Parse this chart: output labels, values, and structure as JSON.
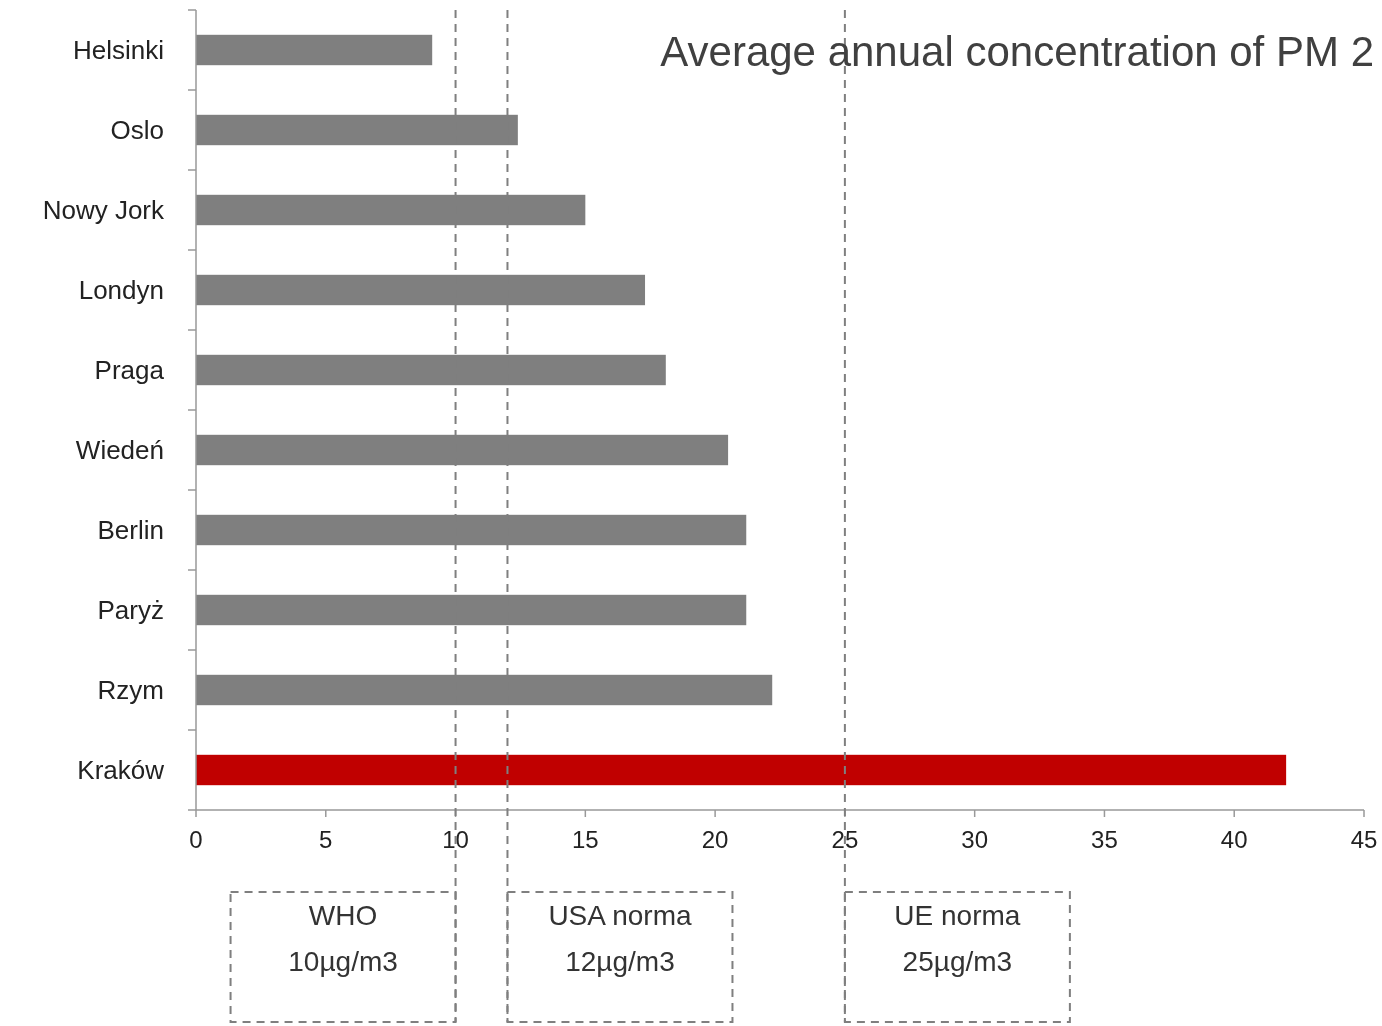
{
  "chart_data": {
    "type": "bar",
    "orientation": "horizontal",
    "title": "Average annual concentration of PM 2",
    "categories": [
      "Helsinki",
      "Oslo",
      "Nowy Jork",
      "Londyn",
      "Praga",
      "Wiedeń",
      "Berlin",
      "Paryż",
      "Rzym",
      "Kraków"
    ],
    "values": [
      9.1,
      12.4,
      15,
      17.3,
      18.1,
      20.5,
      21.2,
      21.2,
      22.2,
      42
    ],
    "colors": [
      "#7f7f7f",
      "#7f7f7f",
      "#7f7f7f",
      "#7f7f7f",
      "#7f7f7f",
      "#7f7f7f",
      "#7f7f7f",
      "#7f7f7f",
      "#7f7f7f",
      "#c00000"
    ],
    "xlim": [
      0,
      45
    ],
    "xticks": [
      0,
      5,
      10,
      15,
      20,
      25,
      30,
      35,
      40,
      45
    ],
    "grid": false,
    "ref_lines": [
      {
        "axis": "x",
        "value": 10,
        "label": "WHO 10µg/m3",
        "color": "#7f7f7f",
        "line_style": "dashed"
      },
      {
        "axis": "x",
        "value": 12,
        "label": "USA norma 12µg/m3",
        "color": "#7f7f7f",
        "line_style": "dashed"
      },
      {
        "axis": "x",
        "value": 25,
        "label": "UE norma 25µg/m3",
        "color": "#7f7f7f",
        "line_style": "dashed"
      }
    ]
  }
}
